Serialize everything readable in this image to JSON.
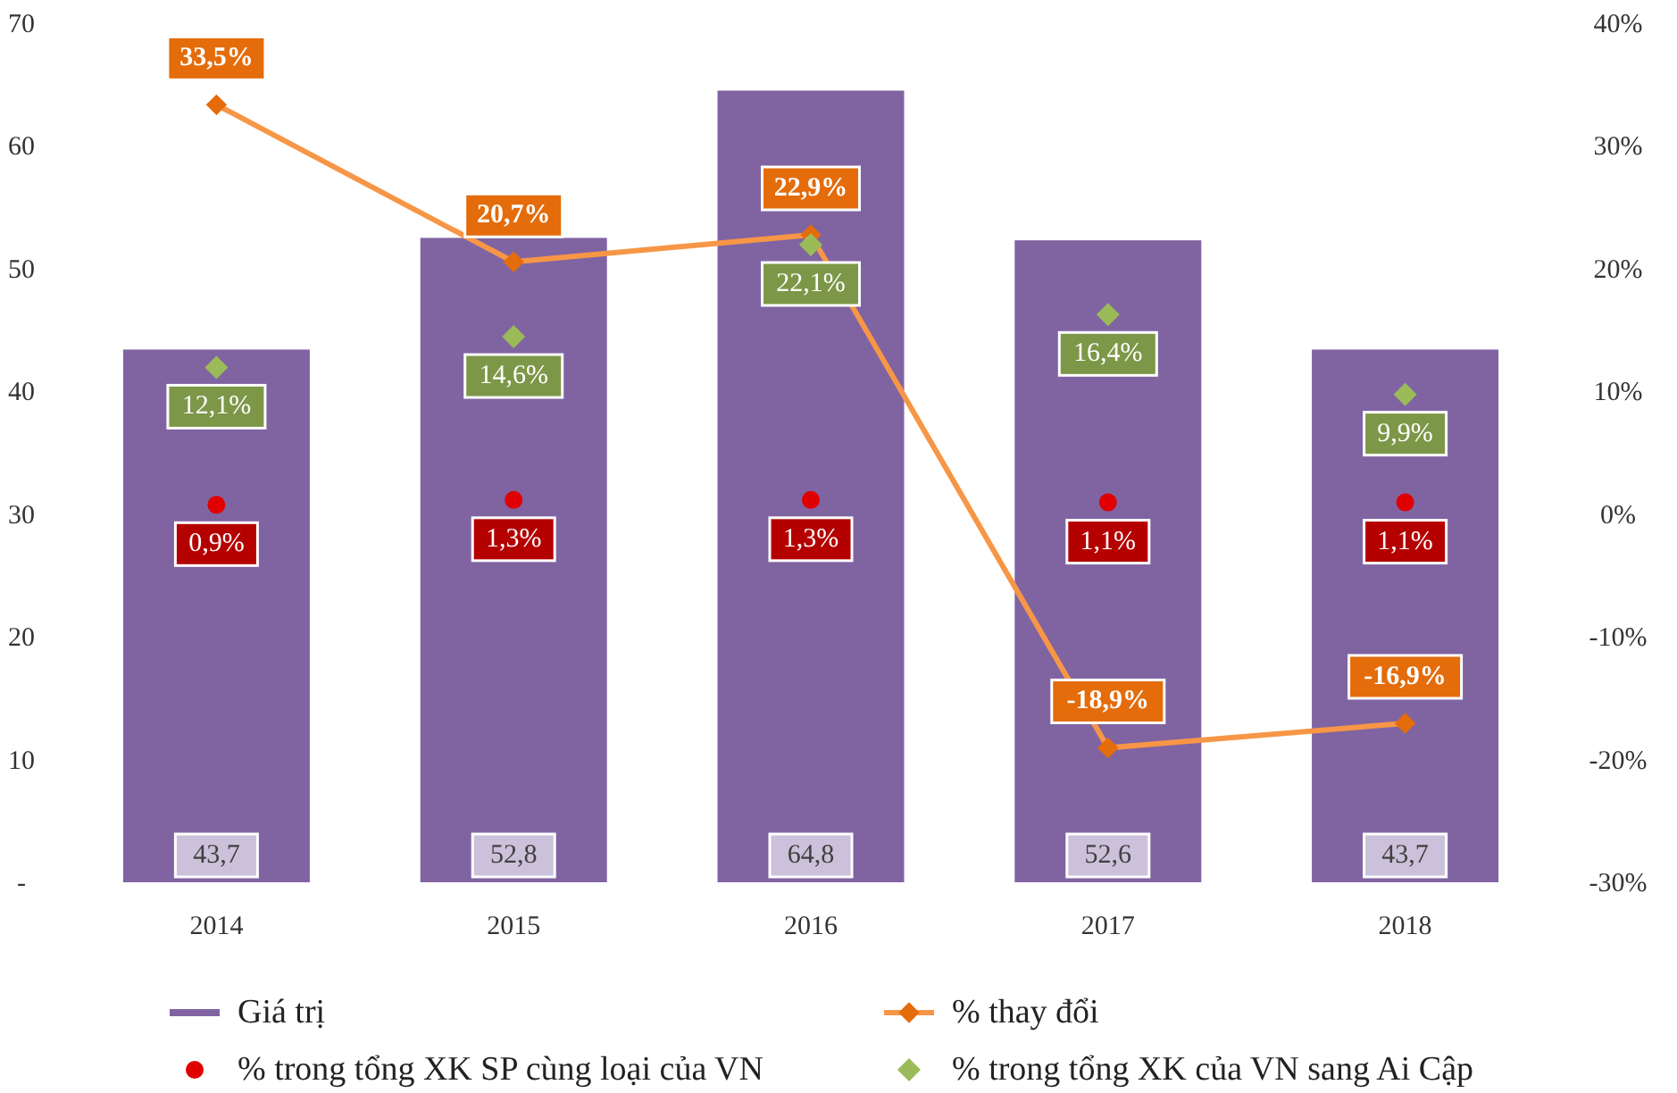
{
  "chart_data": {
    "type": "bar",
    "categories": [
      "2014",
      "2015",
      "2016",
      "2017",
      "2018"
    ],
    "series": [
      {
        "name": "Giá trị",
        "color": "#8064a2",
        "values": [
          43.7,
          52.8,
          64.8,
          52.6,
          43.7
        ],
        "value_labels": [
          "43,7",
          "52,8",
          "64,8",
          "52,6",
          "43,7"
        ]
      },
      {
        "name": "% thay đổi",
        "type": "line",
        "axis": "y2",
        "color": "#f79646",
        "marker": "diamond",
        "values": [
          33.5,
          20.7,
          22.9,
          -18.9,
          -16.9
        ],
        "value_labels": [
          "33,5%",
          "20,7%",
          "22,9%",
          "-18,9%",
          "-16,9%"
        ]
      },
      {
        "name": "% trong tổng XK SP cùng loại của VN",
        "type": "scatter",
        "axis": "y2",
        "color": "#e00000",
        "marker": "circle",
        "values": [
          0.9,
          1.3,
          1.3,
          1.1,
          1.1
        ],
        "value_labels": [
          "0,9%",
          "1,3%",
          "1,3%",
          "1,1%",
          "1,1%"
        ]
      },
      {
        "name": "% trong tổng XK của VN sang Ai Cập",
        "type": "scatter",
        "axis": "y2",
        "color": "#9bbb59",
        "marker": "diamond",
        "values": [
          12.1,
          14.6,
          22.1,
          16.4,
          9.9
        ],
        "value_labels": [
          "12,1%",
          "14,6%",
          "22,1%",
          "16,4%",
          "9,9%"
        ]
      }
    ],
    "ylim": [
      0,
      70
    ],
    "yticks": [
      {
        "value": 0,
        "label": "-"
      },
      10,
      20,
      30,
      40,
      50,
      60,
      70
    ],
    "y2lim": [
      -30,
      40
    ],
    "y2ticks": [
      {
        "value": -30,
        "label": "-30%"
      },
      {
        "value": -20,
        "label": "-20%"
      },
      {
        "value": -10,
        "label": "-10%"
      },
      {
        "value": 0,
        "label": "0%"
      },
      {
        "value": 10,
        "label": "10%"
      },
      {
        "value": 20,
        "label": "20%"
      },
      {
        "value": 30,
        "label": "30%"
      },
      {
        "value": 40,
        "label": "40%"
      }
    ],
    "grid": false,
    "legend": "bottom"
  }
}
